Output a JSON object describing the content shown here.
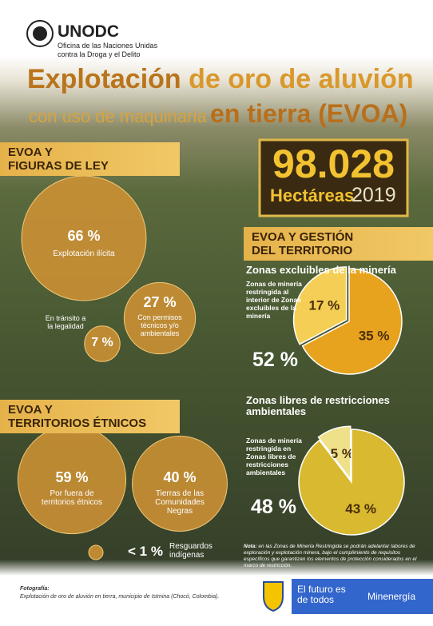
{
  "header": {
    "org": "UNODC",
    "org_sub_1": "Oficina de las Naciones Unidas",
    "org_sub_2": "contra la Droga y el Delito"
  },
  "title": {
    "part1": "Explotación",
    "part2": "de oro de aluvión",
    "line2a": "con uso de maquinaria",
    "line2b": "en tierra (EVOA)"
  },
  "stat": {
    "number": "98.028",
    "unit": "Hectáreas",
    "year": "2019"
  },
  "legal": {
    "heading_1": "EVOA Y",
    "heading_2": "FIGURAS DE LEY",
    "bubbles": [
      {
        "value": 66,
        "label": "66 %",
        "text": "Explotación ilícita"
      },
      {
        "value": 27,
        "label": "27 %",
        "text": "Con permisos técnicos y/o ambientales"
      },
      {
        "value": 7,
        "label": "7 %",
        "text": "En tránsito a la legalidad"
      }
    ]
  },
  "ethnic": {
    "heading_1": "EVOA Y",
    "heading_2": "TERRITORIOS ÉTNICOS",
    "bubbles": [
      {
        "value": 59,
        "label": "59 %",
        "text": "Por fuera de territorios étnicos"
      },
      {
        "value": 40,
        "label": "40 %",
        "text": "Tierras de las Comunidades Negras"
      }
    ],
    "small": {
      "label": "< 1 %",
      "text": "Resguardos indígenas"
    }
  },
  "territory": {
    "heading_1": "EVOA Y GESTIÓN",
    "heading_2": "DEL TERRITORIO",
    "pies": [
      {
        "title": "Zonas excluibles de la minería",
        "note": "Zonas de minería restringida al interior de Zonas excluibles de la minería",
        "slices": [
          {
            "value": 17,
            "label": "17 %"
          },
          {
            "value": 35,
            "label": "35 %"
          }
        ],
        "total": {
          "value": 52,
          "label": "52 %"
        }
      },
      {
        "title": "Zonas libres de restricciones ambientales",
        "note": "Zonas de minería restringida en Zonas libres de restricciones ambientales",
        "slices": [
          {
            "value": 5,
            "label": "5 %"
          },
          {
            "value": 43,
            "label": "43 %"
          }
        ],
        "total": {
          "value": 48,
          "label": "48 %"
        }
      }
    ],
    "footnote_label": "Nota:",
    "footnote": "en las Zonas de Minería Restringida se podrán adelantar labores de exploración y explotación minera, bajo el cumplimiento de requisitos específicos que garantizan los elementos de protección considerados en el marco de restricción."
  },
  "footer": {
    "photo_label": "Fotografía:",
    "photo_caption": "Explotación de oro de aluvión en tierra, municipio de Istmina (Chocó, Colombia).",
    "slogan": "El futuro es de todos",
    "ministry": "Minenergía"
  }
}
